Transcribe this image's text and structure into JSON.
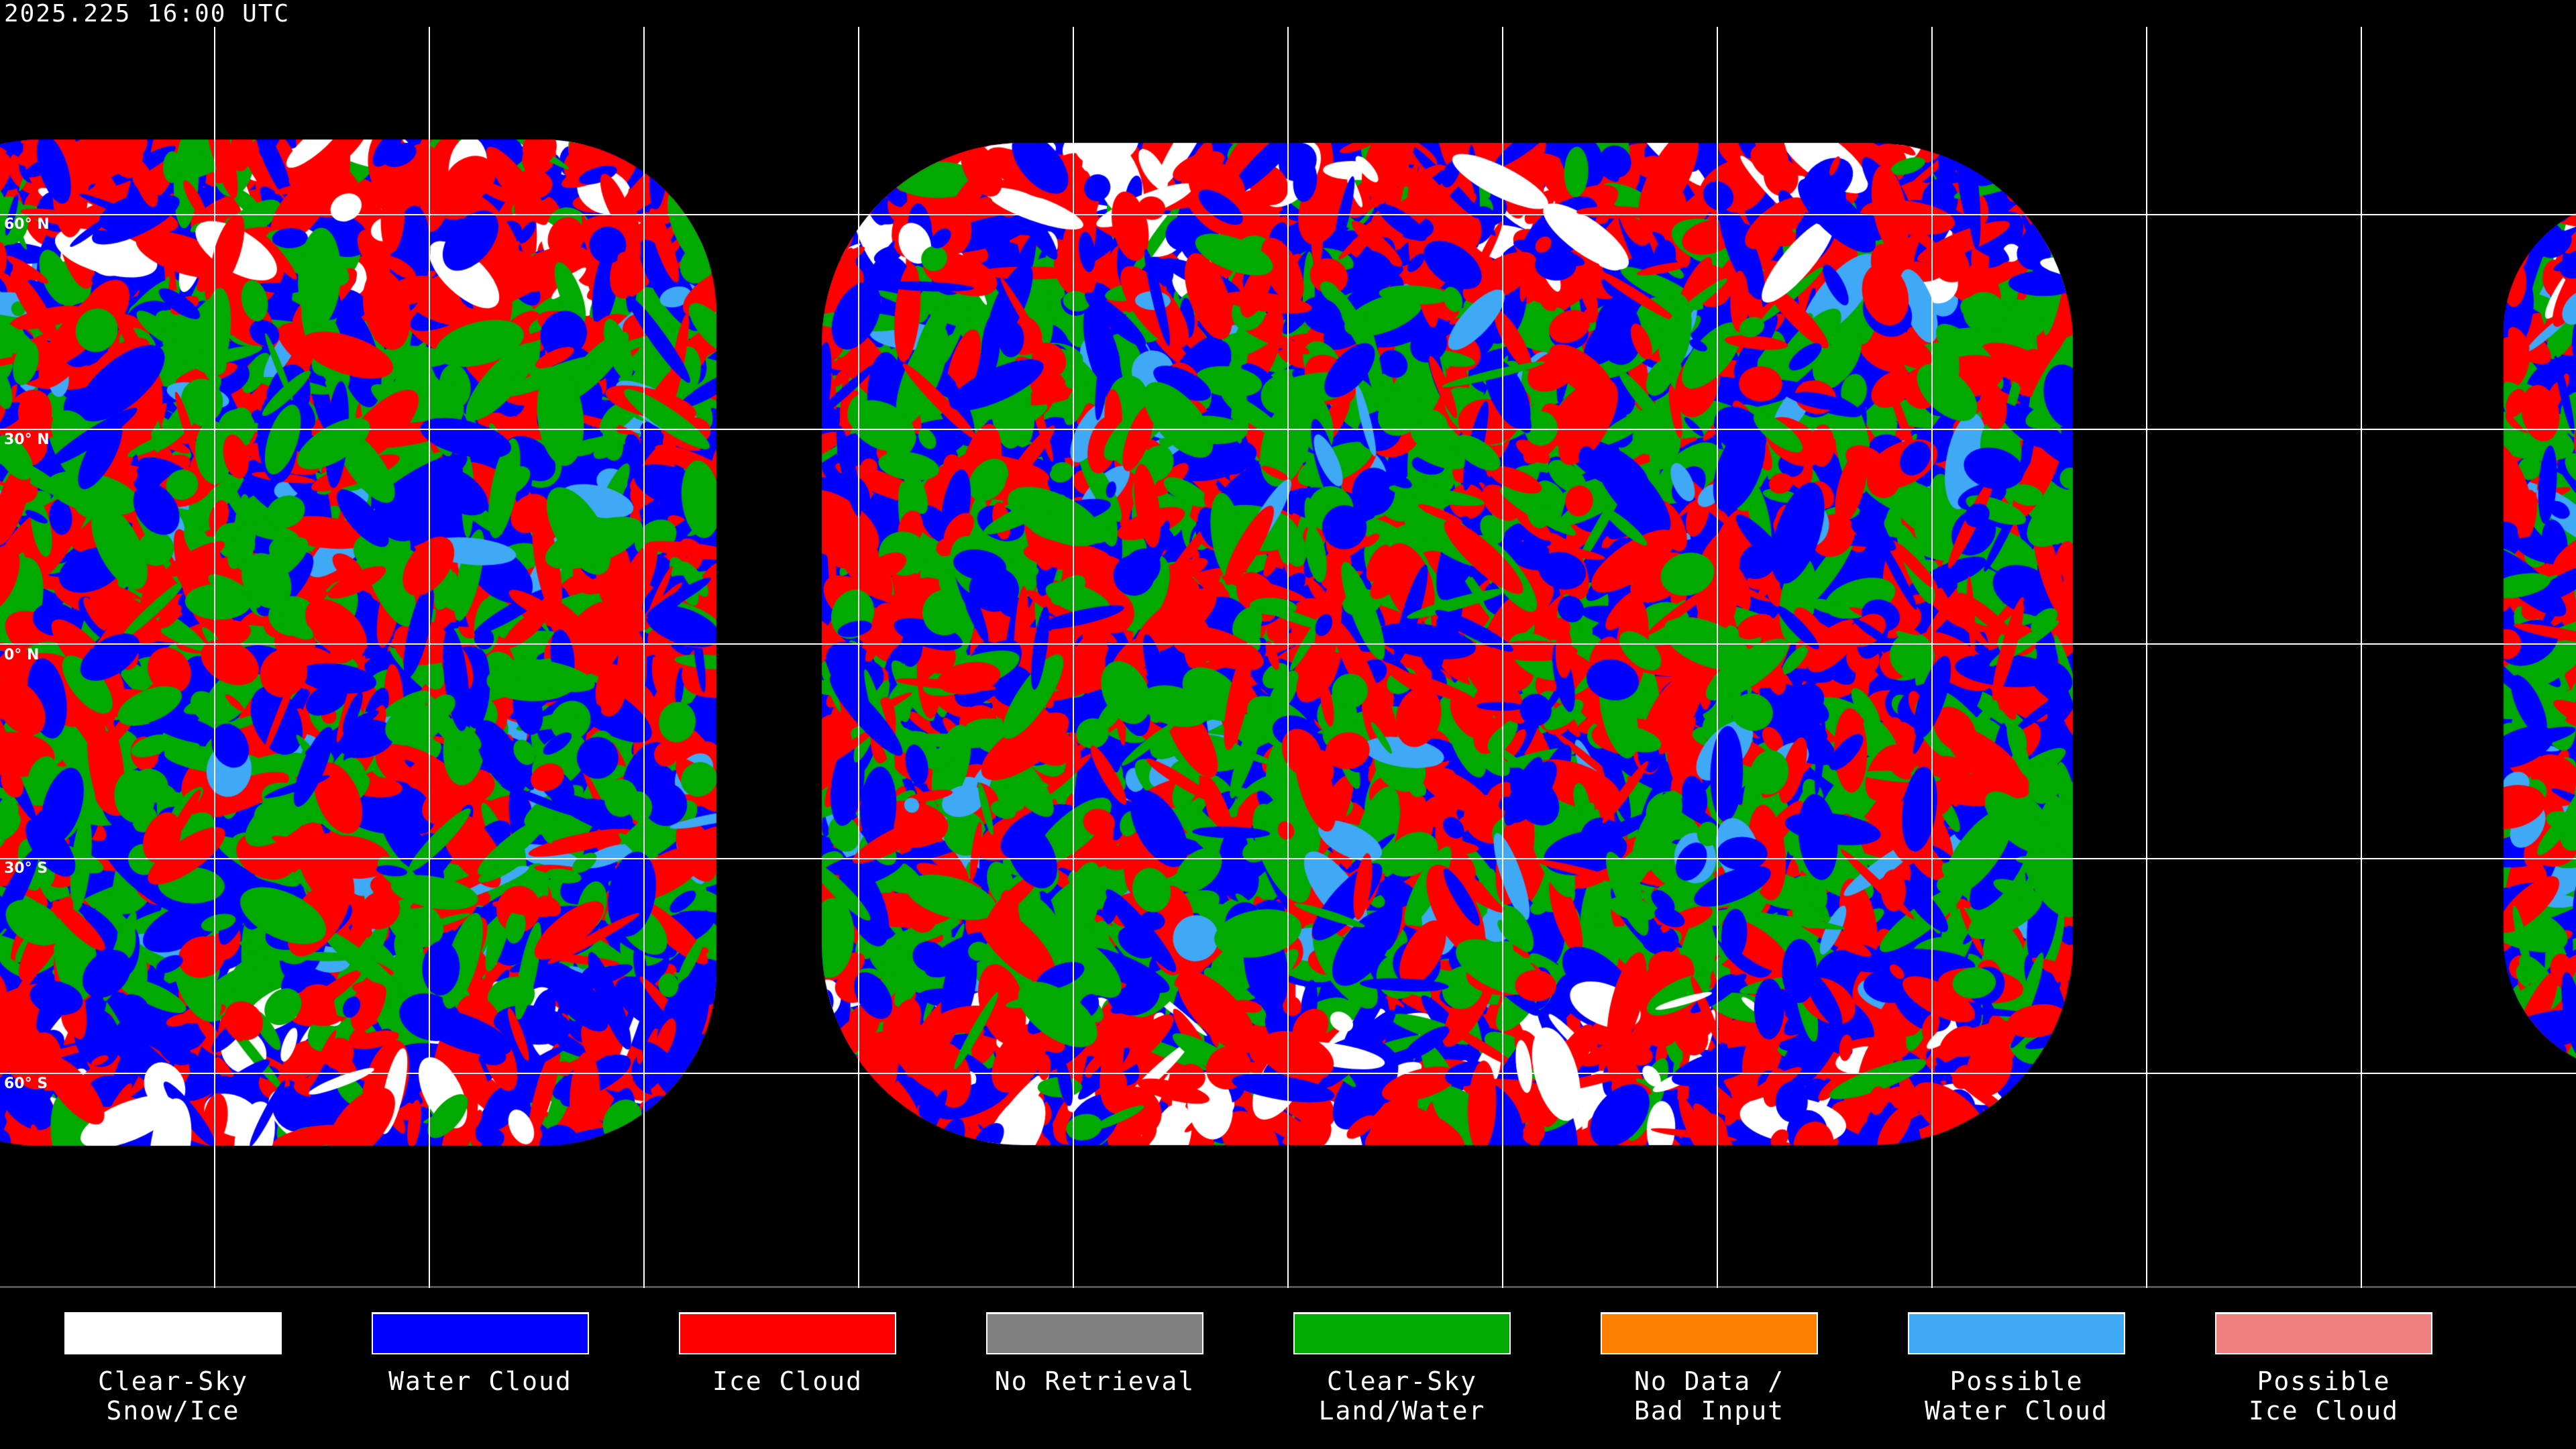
{
  "header": {
    "timestamp": "2025.225 16:00 UTC"
  },
  "map": {
    "latitude_labels": [
      "60° N",
      "30° N",
      "0° N",
      "30° S",
      "60° S"
    ],
    "grid_spacing_degrees": 30
  },
  "legend": [
    {
      "label": "Clear-Sky\nSnow/Ice",
      "color": "#ffffff"
    },
    {
      "label": "Water Cloud",
      "color": "#0000ff"
    },
    {
      "label": "Ice Cloud",
      "color": "#ff0000"
    },
    {
      "label": "No Retrieval",
      "color": "#808080"
    },
    {
      "label": "Clear-Sky\nLand/Water",
      "color": "#00aa00"
    },
    {
      "label": "No Data /\nBad Input",
      "color": "#ff8000"
    },
    {
      "label": "Possible\nWater Cloud",
      "color": "#3fa9f5"
    },
    {
      "label": "Possible\nIce Cloud",
      "color": "#f08080"
    }
  ]
}
